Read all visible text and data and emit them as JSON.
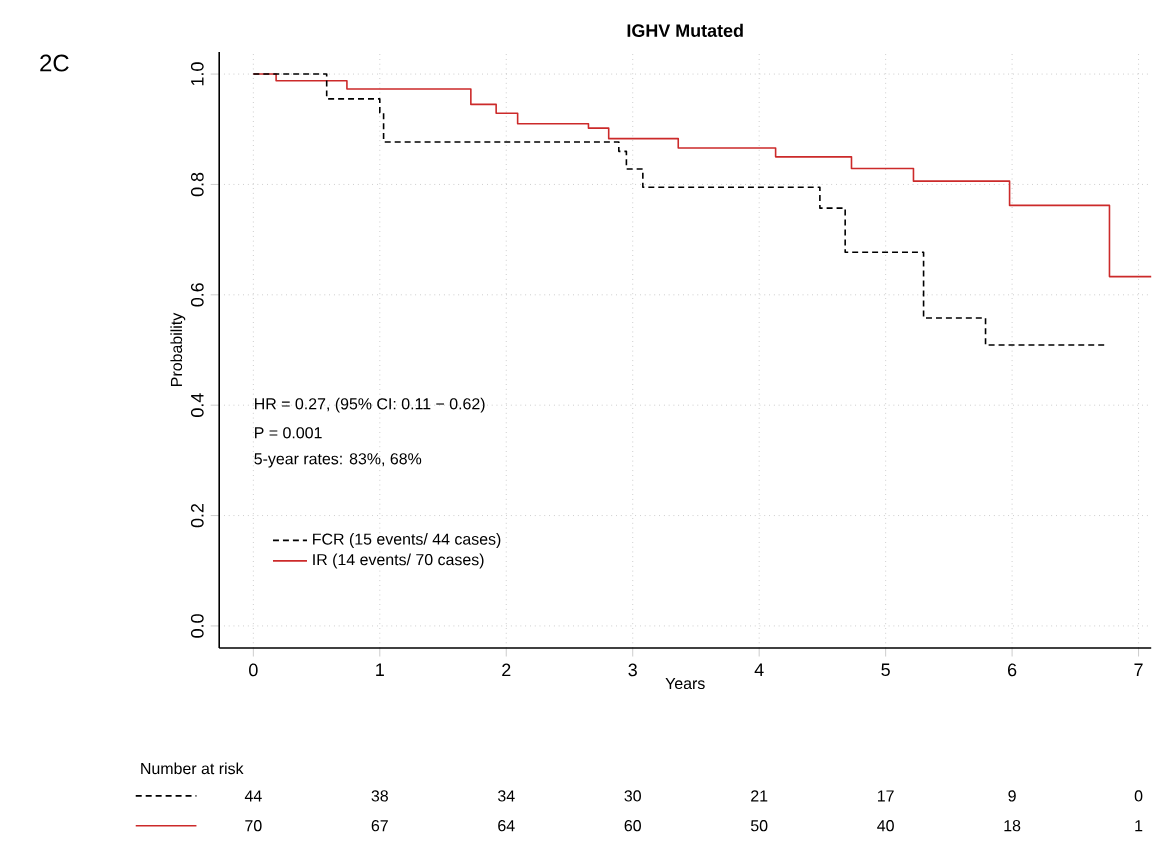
{
  "chart_data": {
    "type": "step",
    "title": "IGHV Mutated",
    "xlabel": "Years",
    "ylabel": "Probability",
    "xlim": [
      -0.27,
      7.1
    ],
    "ylim": [
      -0.04,
      1.04
    ],
    "xticks": [
      0,
      1,
      2,
      3,
      4,
      5,
      6,
      7
    ],
    "yticks": [
      {
        "value": 0,
        "label": "0.0"
      },
      {
        "value": 0.2,
        "label": "0.2"
      },
      {
        "value": 0.4,
        "label": "0.4"
      },
      {
        "value": 0.6,
        "label": "0.6"
      },
      {
        "value": 0.8,
        "label": "0.8"
      },
      {
        "value": 1,
        "label": "1.0"
      }
    ],
    "grid": true,
    "legend": "bottom left",
    "marker": "none",
    "series": [
      {
        "name": "FCR  (15 events/ 44 cases)",
        "color": "#000000",
        "line_style": "dashed",
        "x": [
          0,
          0.58,
          1.0,
          1.03,
          2.89,
          2.95,
          3.08,
          4.48,
          4.68,
          5.3,
          5.79,
          6.74
        ],
        "values": [
          1.0,
          0.955,
          0.93,
          0.877,
          0.86,
          0.828,
          0.795,
          0.757,
          0.677,
          0.558,
          0.509,
          0.509
        ]
      },
      {
        "name": "IR  (14 events/ 70 cases)",
        "color": "#cc2a2a",
        "line_style": "solid",
        "x": [
          0,
          0.18,
          0.74,
          1.72,
          1.92,
          2.09,
          2.65,
          2.81,
          3.36,
          4.13,
          4.73,
          5.22,
          5.98,
          6.77,
          7.1
        ],
        "values": [
          1.0,
          0.988,
          0.973,
          0.945,
          0.929,
          0.91,
          0.902,
          0.883,
          0.866,
          0.85,
          0.829,
          0.806,
          0.762,
          0.633,
          0.633
        ]
      }
    ],
    "annotations": [
      "2C",
      "HR = 0.27, (95% CI: 0.11 − 0.62)",
      "P = 0.001",
      "5-year rates: 83%, 68%",
      "Number at risk",
      "44",
      "38",
      "34",
      "30",
      "21",
      "17",
      "9",
      "0",
      "70",
      "67",
      "64",
      "60",
      "50",
      "40",
      "18",
      "1"
    ]
  }
}
